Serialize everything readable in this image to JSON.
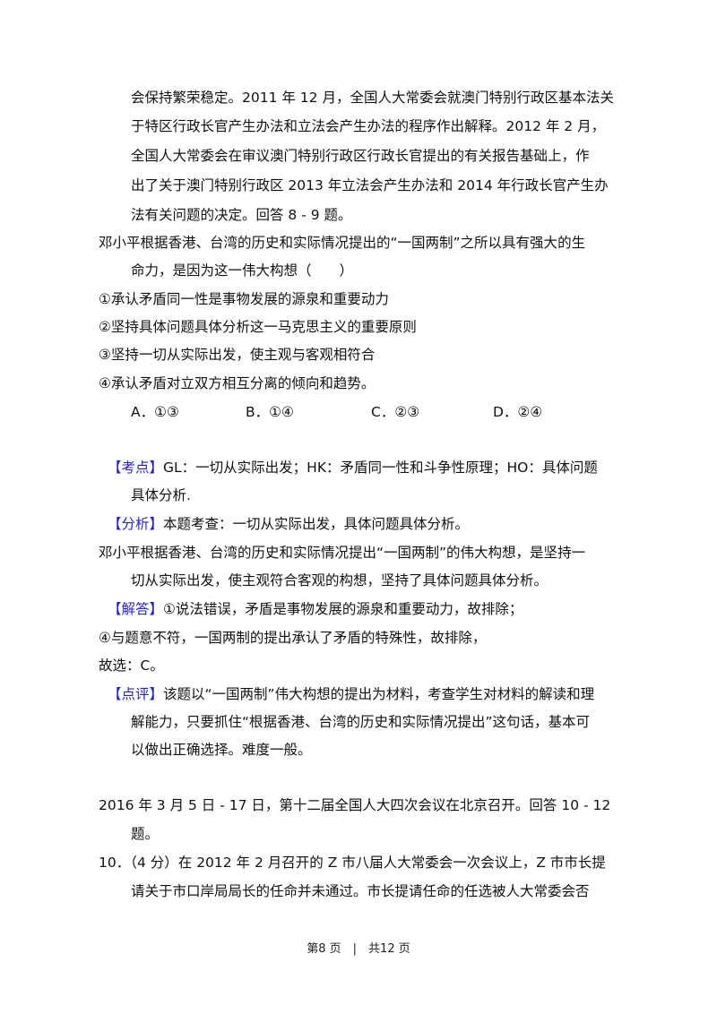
{
  "material_lines": [
    "会保持繁荣稳定。2011 年 12 月，全国人大常委会就澳门特别行政区基本法关",
    "于特区行政长官产生办法和立法会产生办法的程序作出解释。2012 年 2 月，",
    "全国人大常委会在审议澳门特别行政区行政长官提出的有关报告基础上，作",
    "出了关于澳门特别行政区 2013 年立法会产生办法和 2014 年行政长官产生办",
    "法有关问题的决定。回答 8 - 9 题。"
  ],
  "question": {
    "lines": [
      "邓小平根据香港、台湾的历史和实际情况提出的“一国两制”之所以具有强大的生",
      "命力，是因为这一伟大构想（　　）"
    ],
    "statements": [
      "①承认矛盾同一性是事物发展的源泉和重要动力",
      "②坚持具体问题具体分析这一马克思主义的重要原则",
      "③坚持一切从实际出发，使主观与客观相符合",
      "④承认矛盾对立双方相互分离的倾向和趋势。"
    ],
    "options": [
      "A．①③",
      "B．①④",
      "C．②③",
      "D．②④"
    ]
  },
  "answer": {
    "kaodian_label": "【考点】",
    "kaodian_lines": [
      "GL：一切从实际出发；HK：矛盾同一性和斗争性原理；HO：具体问题",
      "具体分析."
    ],
    "fenxi_label": "【分析】",
    "fenxi_text": "本题考查：一切从实际出发，具体问题具体分析。",
    "fenxi_lines": [
      "邓小平根据香港、台湾的历史和实际情况提出“一国两制”的伟大构想，是坚持一",
      "切从实际出发，使主观符合客观的构想，坚持了具体问题具体分析。"
    ],
    "jieda_label": "【解答】",
    "jieda_lines": [
      "①说法错误，矛盾是事物发展的源泉和重要动力，故排除；",
      "④与题意不符，一国两制的提出承认了矛盾的特殊性，故排除，",
      "故选：C。"
    ],
    "dianping_label": "【点评】",
    "dianping_lines": [
      "该题以“一国两制”伟大构想的提出为材料，考查学生对材料的解读和理",
      "解能力，只要抓住“根据香港、台湾的历史和实际情况提出”这句话，基本可",
      "以做出正确选择。难度一般。"
    ]
  },
  "next_material_lines": [
    "2016 年 3 月 5 日 - 17 日，第十二届全国人大四次会议在北京召开。回答 10 - 12",
    "题。"
  ],
  "q10_lines": [
    "10．（4 分）在 2012 年 2 月召开的 Z 市八届人大常委会一次会议上，Z 市市长提",
    "请关于市口岸局局长的任命并未通过。市长提请任命的任选被人大常委会否"
  ],
  "footer": "第8 页　|　共12 页",
  "colors": {
    "tag": "#1f1fd6"
  }
}
